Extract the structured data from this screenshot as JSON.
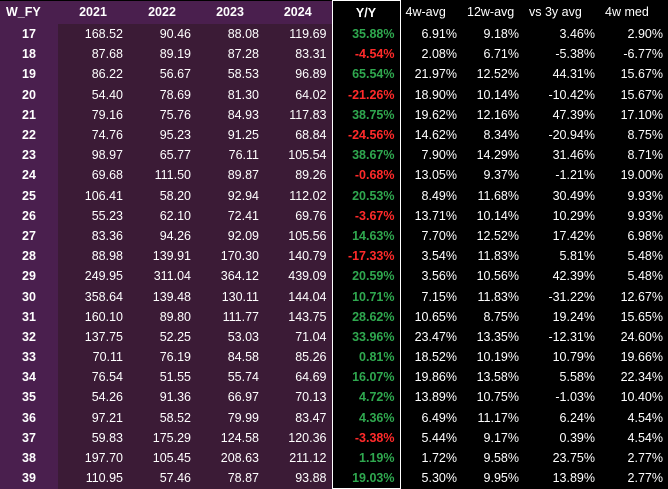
{
  "headers": [
    "W_FY",
    "2021",
    "2022",
    "2023",
    "2024",
    "Y/Y",
    "4w-avg",
    "12w-avg",
    "vs 3y avg",
    "4w med"
  ],
  "rows": [
    [
      "17",
      "168.52",
      "90.46",
      "88.08",
      "119.69",
      "35.88%",
      "6.91%",
      "9.18%",
      "3.46%",
      "2.90%"
    ],
    [
      "18",
      "87.68",
      "89.19",
      "87.28",
      "83.31",
      "-4.54%",
      "2.08%",
      "6.71%",
      "-5.38%",
      "-6.77%"
    ],
    [
      "19",
      "86.22",
      "56.67",
      "58.53",
      "96.89",
      "65.54%",
      "21.97%",
      "12.52%",
      "44.31%",
      "15.67%"
    ],
    [
      "20",
      "54.40",
      "78.69",
      "81.30",
      "64.02",
      "-21.26%",
      "18.90%",
      "10.14%",
      "-10.42%",
      "15.67%"
    ],
    [
      "21",
      "79.16",
      "75.76",
      "84.93",
      "117.83",
      "38.75%",
      "19.62%",
      "12.16%",
      "47.39%",
      "17.10%"
    ],
    [
      "22",
      "74.76",
      "95.23",
      "91.25",
      "68.84",
      "-24.56%",
      "14.62%",
      "8.34%",
      "-20.94%",
      "8.75%"
    ],
    [
      "23",
      "98.97",
      "65.77",
      "76.11",
      "105.54",
      "38.67%",
      "7.90%",
      "14.29%",
      "31.46%",
      "8.71%"
    ],
    [
      "24",
      "69.68",
      "111.50",
      "89.87",
      "89.26",
      "-0.68%",
      "13.05%",
      "9.37%",
      "-1.21%",
      "19.00%"
    ],
    [
      "25",
      "106.41",
      "58.20",
      "92.94",
      "112.02",
      "20.53%",
      "8.49%",
      "11.68%",
      "30.49%",
      "9.93%"
    ],
    [
      "26",
      "55.23",
      "62.10",
      "72.41",
      "69.76",
      "-3.67%",
      "13.71%",
      "10.14%",
      "10.29%",
      "9.93%"
    ],
    [
      "27",
      "83.36",
      "94.26",
      "92.09",
      "105.56",
      "14.63%",
      "7.70%",
      "12.52%",
      "17.42%",
      "6.98%"
    ],
    [
      "28",
      "88.98",
      "139.91",
      "170.30",
      "140.79",
      "-17.33%",
      "3.54%",
      "11.83%",
      "5.81%",
      "5.48%"
    ],
    [
      "29",
      "249.95",
      "311.04",
      "364.12",
      "439.09",
      "20.59%",
      "3.56%",
      "10.56%",
      "42.39%",
      "5.48%"
    ],
    [
      "30",
      "358.64",
      "139.48",
      "130.11",
      "144.04",
      "10.71%",
      "7.15%",
      "11.83%",
      "-31.22%",
      "12.67%"
    ],
    [
      "31",
      "160.10",
      "89.80",
      "111.77",
      "143.75",
      "28.62%",
      "10.65%",
      "8.75%",
      "19.24%",
      "15.65%"
    ],
    [
      "32",
      "137.75",
      "52.25",
      "53.03",
      "71.04",
      "33.96%",
      "23.47%",
      "13.35%",
      "-12.31%",
      "24.60%"
    ],
    [
      "33",
      "70.11",
      "76.19",
      "84.58",
      "85.26",
      "0.81%",
      "18.52%",
      "10.19%",
      "10.79%",
      "19.66%"
    ],
    [
      "34",
      "76.54",
      "51.55",
      "55.74",
      "64.69",
      "16.07%",
      "19.86%",
      "13.58%",
      "5.58%",
      "22.34%"
    ],
    [
      "35",
      "54.26",
      "91.36",
      "66.97",
      "70.13",
      "4.72%",
      "13.89%",
      "10.75%",
      "-1.03%",
      "10.40%"
    ],
    [
      "36",
      "97.21",
      "58.52",
      "79.99",
      "83.47",
      "4.36%",
      "6.49%",
      "11.17%",
      "6.24%",
      "4.54%"
    ],
    [
      "37",
      "59.83",
      "175.29",
      "124.58",
      "120.36",
      "-3.38%",
      "5.44%",
      "9.17%",
      "0.39%",
      "4.54%"
    ],
    [
      "38",
      "197.70",
      "105.45",
      "208.63",
      "211.12",
      "1.19%",
      "1.72%",
      "9.58%",
      "23.75%",
      "2.77%"
    ],
    [
      "39",
      "110.95",
      "57.46",
      "78.87",
      "93.88",
      "19.03%",
      "5.30%",
      "9.95%",
      "13.89%",
      "2.77%"
    ]
  ]
}
